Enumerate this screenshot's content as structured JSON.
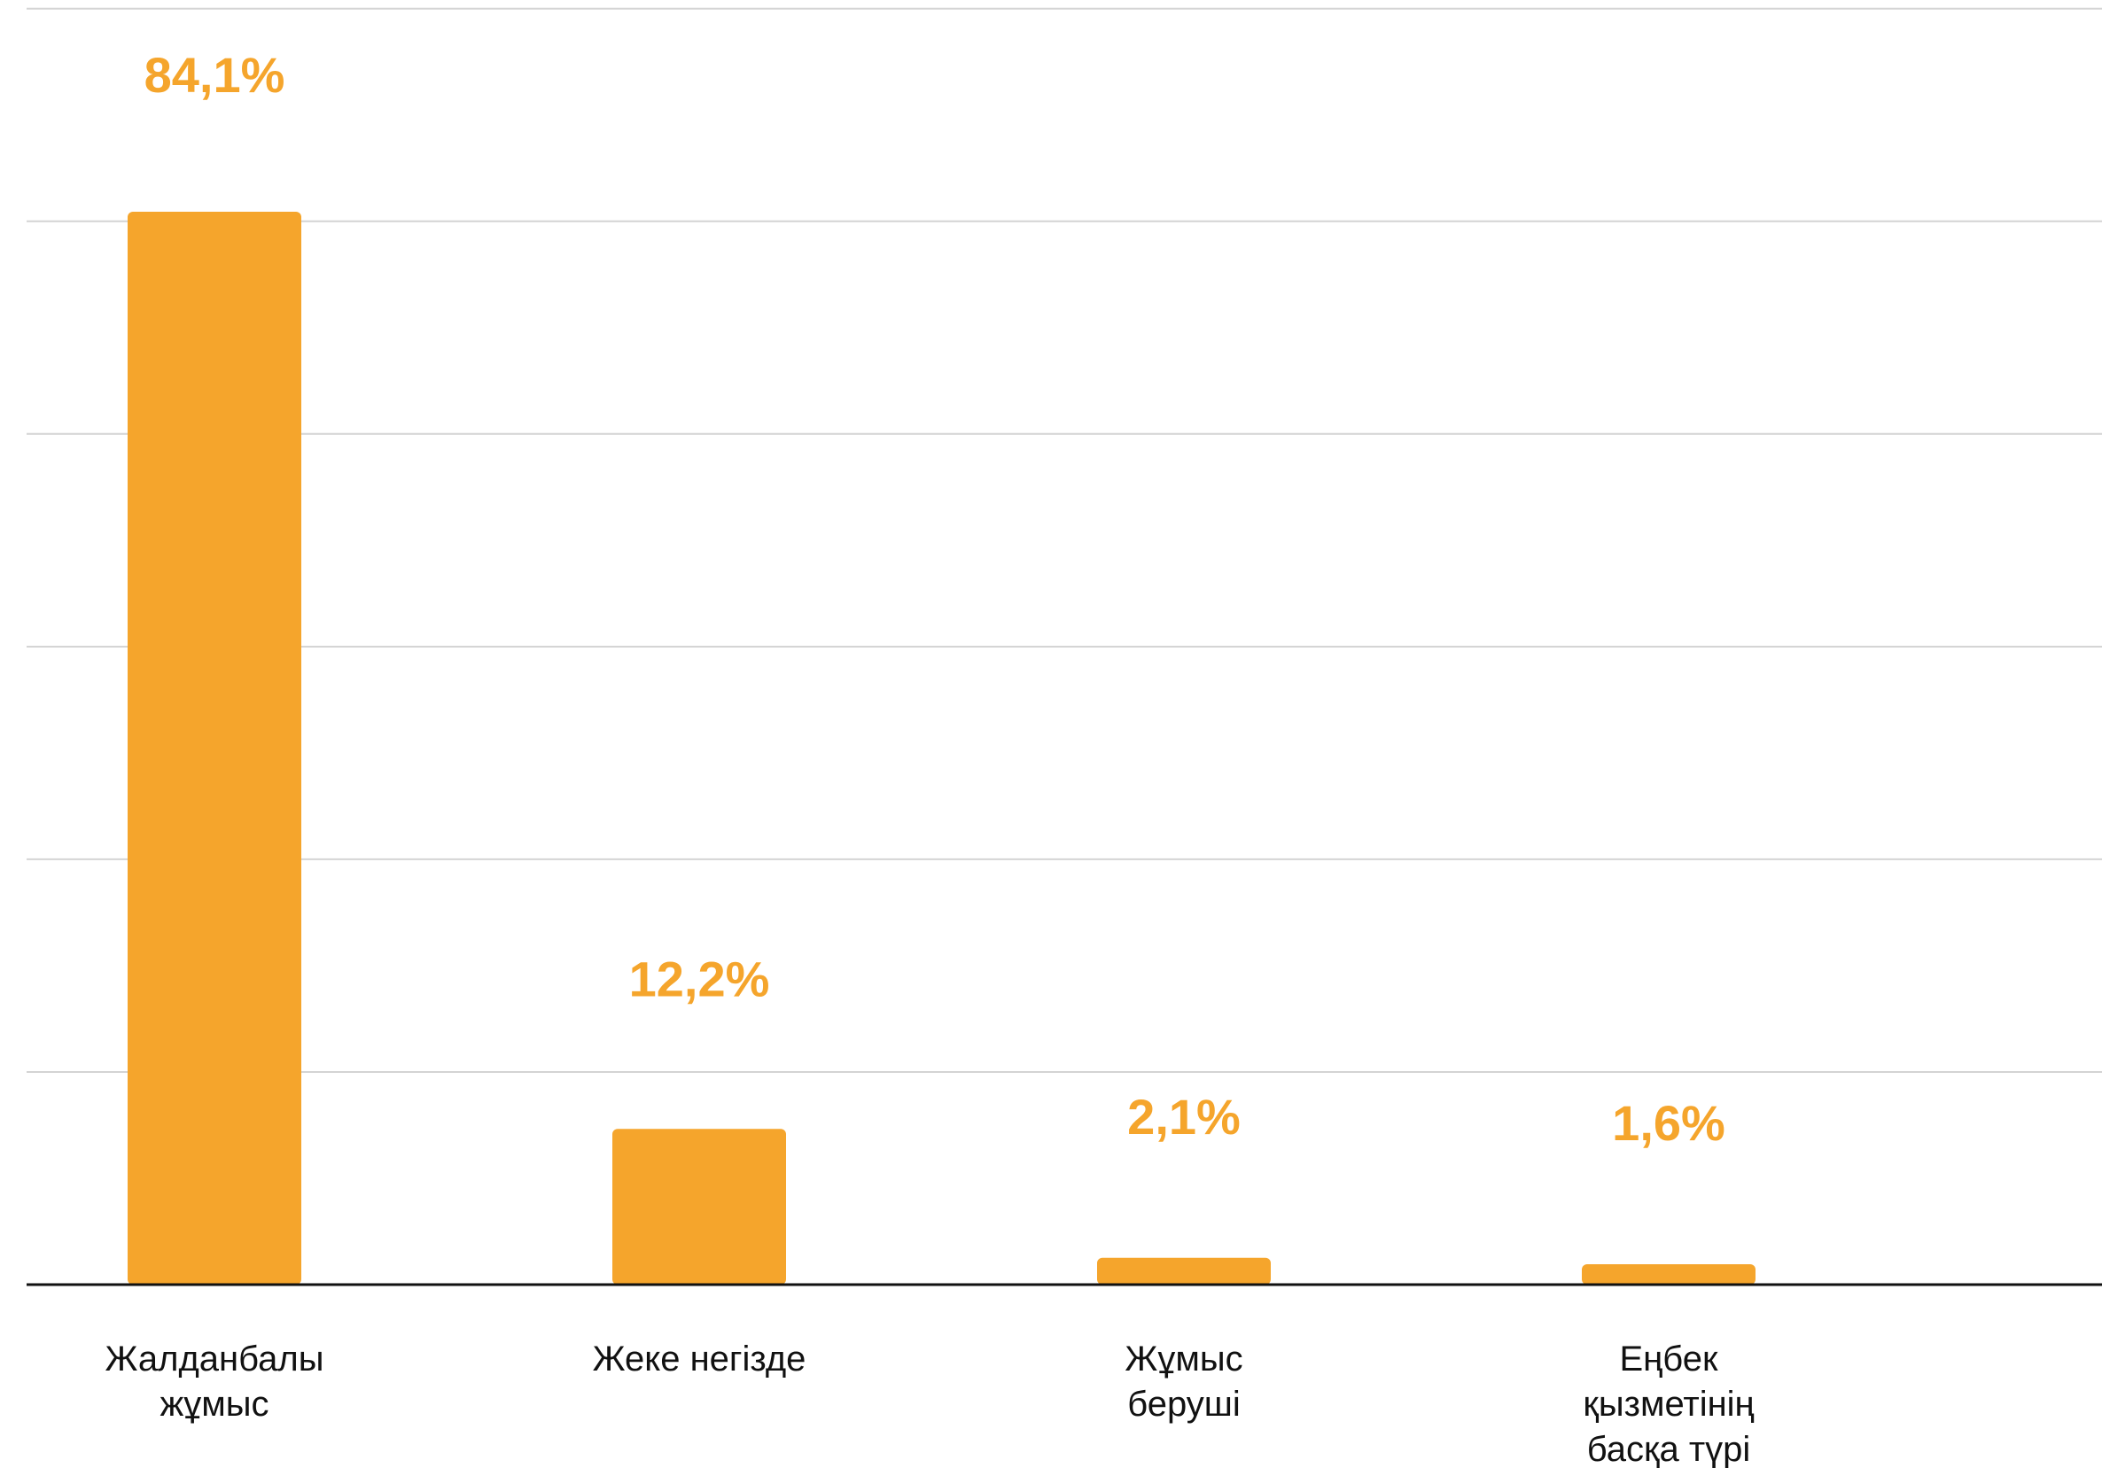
{
  "chart_data": {
    "type": "bar",
    "title": "",
    "xlabel": "",
    "ylabel": "",
    "categories": [
      [
        "Жалданбалы",
        "жұмыс"
      ],
      [
        "Жеке негізде"
      ],
      [
        "Жұмыс",
        "беруші"
      ],
      [
        "Еңбек",
        "қызметінің",
        "басқа түрі"
      ]
    ],
    "values": [
      84.1,
      12.2,
      2.1,
      1.6
    ],
    "value_labels": [
      "84,1%",
      "12,2%",
      "2,1%",
      "1,6%"
    ],
    "ylim": [
      0,
      100
    ],
    "grid": true,
    "legend": "none",
    "colors": {
      "bar": "#F5A52C",
      "label": "#F5A52C",
      "grid": "#D4D4D4",
      "axis": "#111111"
    }
  }
}
